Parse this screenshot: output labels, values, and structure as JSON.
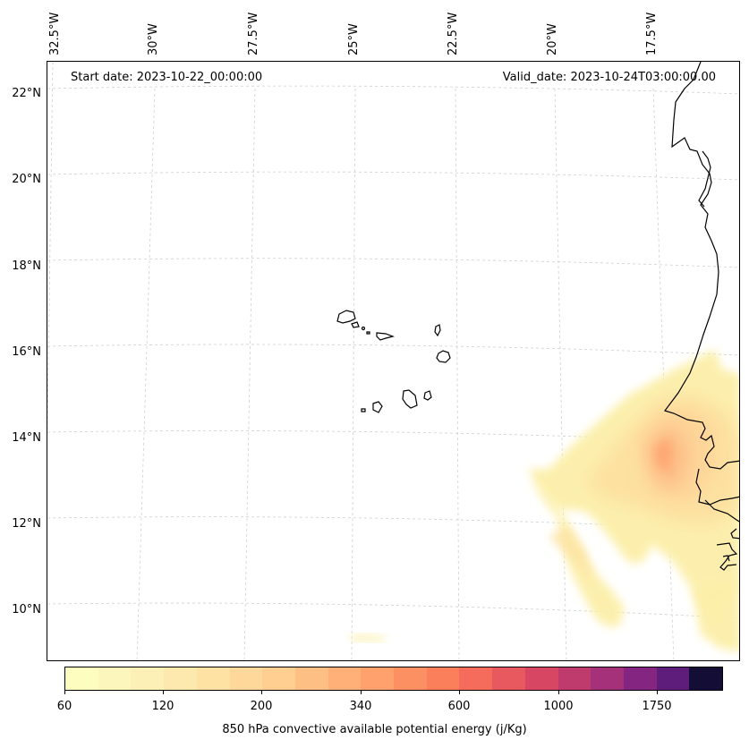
{
  "map": {
    "start_date": "Start date: 2023-10-22_00:00:00",
    "valid_date": "Valid_date: 2023-10-24T03:00:00.00",
    "latitude_labels": [
      "22°N",
      "20°N",
      "18°N",
      "16°N",
      "14°N",
      "12°N",
      "10°N"
    ],
    "longitude_labels": [
      "32.5°W",
      "30°W",
      "27.5°W",
      "25°W",
      "22.5°W",
      "20°W",
      "17.5°W"
    ],
    "features": [
      "coastline-west-africa",
      "cape-verde-islands",
      "cape-energy-field"
    ]
  },
  "colorbar": {
    "label": "850 hPa convective available potential energy (j/Kg)",
    "tick_labels": [
      "60",
      "120",
      "200",
      "340",
      "600",
      "1000",
      "1750"
    ],
    "colors": [
      "#fcfdbf",
      "#fcf6bc",
      "#fcf0b6",
      "#fde9ae",
      "#fde2a4",
      "#fdd89a",
      "#fecf91",
      "#febf84",
      "#feb078",
      "#fea16d",
      "#fd9063",
      "#fb7f5b",
      "#f56c5c",
      "#e8585f",
      "#d74764",
      "#c03b6d",
      "#a5317b",
      "#842681",
      "#5e1d7a",
      "#140e36"
    ]
  }
}
